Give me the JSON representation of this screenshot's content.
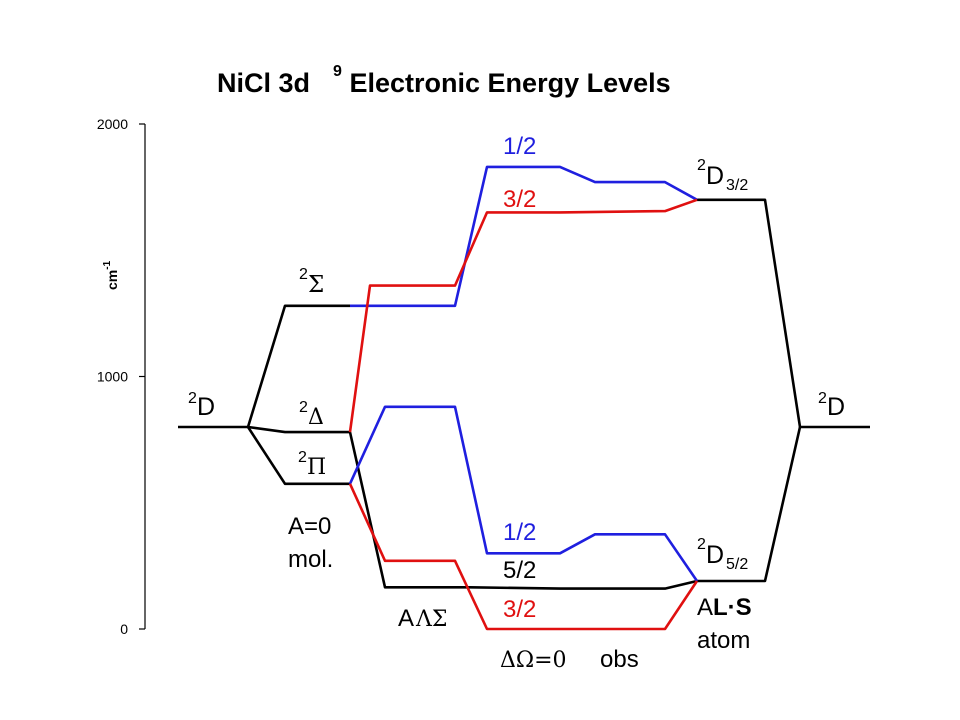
{
  "title": {
    "prefix": "NiCl 3d",
    "superscript": "9",
    "suffix": " Electronic Energy Levels"
  },
  "axis": {
    "unit_base": "cm",
    "unit_exp": "-1",
    "range": [
      0,
      2000
    ],
    "ticks": [
      {
        "value": 0,
        "label": "0"
      },
      {
        "value": 1000,
        "label": "1000"
      },
      {
        "value": 2000,
        "label": "2000"
      }
    ]
  },
  "colors": {
    "black": "#000000",
    "omega_half": "#1f1fdf",
    "omega_three_half": "#e01010"
  },
  "levels": {
    "free_ion_left": {
      "label_sup": "2",
      "label": "D",
      "energy": 800
    },
    "sigma": {
      "label_sup": "2",
      "symbol": "Σ",
      "energy": 1280
    },
    "delta": {
      "label_sup": "2",
      "symbol": "Δ",
      "energy": 780
    },
    "pi": {
      "label_sup": "2",
      "symbol": "Π",
      "energy": 575
    },
    "d32": {
      "label_sup": "2",
      "label": "D",
      "label_sub": "3/2",
      "energy": 1700
    },
    "d52": {
      "label_sup": "2",
      "label": "D",
      "label_sub": "5/2",
      "energy": 190
    },
    "free_ion_right": {
      "label_sup": "2",
      "label": "D",
      "energy": 800
    }
  },
  "omega_labels": {
    "upper_half": "1/2",
    "upper_three_half": "3/2",
    "lower_half": "1/2",
    "lower_five_half": "5/2",
    "lower_three_half": "3/2"
  },
  "annotations": {
    "mol_line1": "A=0",
    "mol_line2": "mol.",
    "als_prefix": "A",
    "als_symbols": "ΛΣ",
    "delta_omega": "ΔΩ=0",
    "obs": "obs",
    "atom_line1_prefix": "A",
    "atom_line1_bold": "L·S",
    "atom_line2": "atom"
  },
  "series": [
    {
      "key": "free_ion_left",
      "color": "black",
      "points": [
        [
          178,
          800
        ],
        [
          248,
          800
        ]
      ]
    },
    {
      "key": "sigma_black",
      "color": "black",
      "points": [
        [
          248,
          800
        ],
        [
          285,
          1280
        ],
        [
          350,
          1280
        ]
      ]
    },
    {
      "key": "delta_black",
      "color": "black",
      "points": [
        [
          248,
          800
        ],
        [
          285,
          780
        ],
        [
          350,
          780
        ]
      ]
    },
    {
      "key": "pi_black",
      "color": "black",
      "points": [
        [
          248,
          800
        ],
        [
          285,
          575
        ],
        [
          350,
          575
        ]
      ]
    },
    {
      "key": "five_half_black",
      "color": "black",
      "points": [
        [
          350,
          780
        ],
        [
          385,
          165
        ],
        [
          470,
          165
        ],
        [
          560,
          160
        ],
        [
          665,
          160
        ],
        [
          697,
          190
        ]
      ]
    },
    {
      "key": "d32_black",
      "color": "black",
      "points": [
        [
          697,
          1700
        ],
        [
          765,
          1700
        ],
        [
          800,
          800
        ],
        [
          870,
          800
        ]
      ]
    },
    {
      "key": "d52_black",
      "color": "black",
      "points": [
        [
          697,
          190
        ],
        [
          765,
          190
        ],
        [
          800,
          800
        ]
      ]
    },
    {
      "key": "sigma_half_blue",
      "color": "omega_half",
      "points": [
        [
          350,
          1280
        ],
        [
          455,
          1280
        ],
        [
          487,
          1830
        ],
        [
          560,
          1830
        ],
        [
          595,
          1770
        ],
        [
          665,
          1770
        ],
        [
          697,
          1700
        ]
      ]
    },
    {
      "key": "sigma_three_half_red",
      "color": "omega_three_half",
      "points": [
        [
          350,
          780
        ],
        [
          370,
          1360
        ],
        [
          455,
          1360
        ],
        [
          487,
          1650
        ],
        [
          560,
          1650
        ],
        [
          665,
          1655
        ],
        [
          697,
          1700
        ]
      ]
    },
    {
      "key": "pi_half_blue",
      "color": "omega_half",
      "points": [
        [
          350,
          575
        ],
        [
          385,
          880
        ],
        [
          455,
          880
        ],
        [
          487,
          300
        ],
        [
          560,
          300
        ],
        [
          595,
          375
        ],
        [
          665,
          375
        ],
        [
          697,
          190
        ]
      ]
    },
    {
      "key": "pi_three_half_red",
      "color": "omega_three_half",
      "points": [
        [
          350,
          575
        ],
        [
          385,
          270
        ],
        [
          455,
          270
        ],
        [
          487,
          0
        ],
        [
          560,
          0
        ],
        [
          665,
          0
        ],
        [
          697,
          190
        ]
      ]
    }
  ]
}
